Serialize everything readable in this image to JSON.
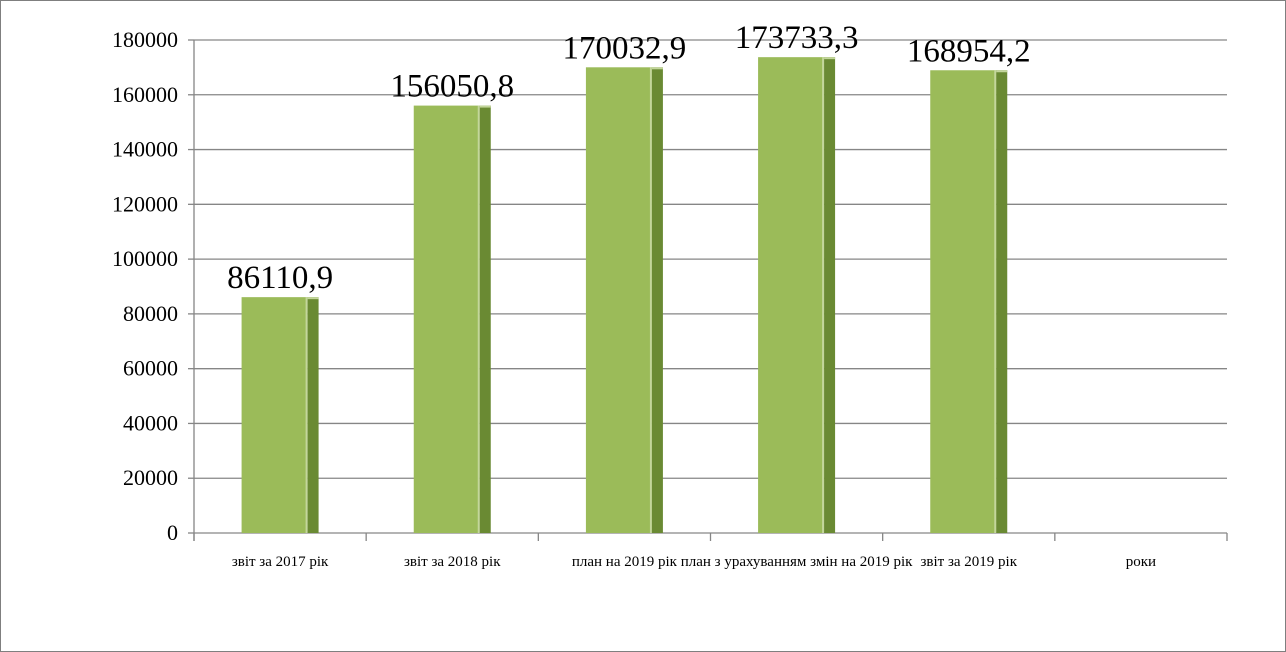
{
  "chart_data": {
    "type": "bar",
    "categories": [
      "звіт за 2017 рік",
      "звіт за 2018 рік",
      "план на 2019 рік",
      "план з урахуванням змін на 2019 рік",
      "звіт за 2019 рік",
      "роки"
    ],
    "values": [
      86110.9,
      156050.8,
      170032.9,
      173733.3,
      168954.2,
      null
    ],
    "data_labels": [
      "86110,9",
      "156050,8",
      "170032,9",
      "173733,3",
      "168954,2",
      ""
    ],
    "y_ticks": [
      "0",
      "20000",
      "40000",
      "60000",
      "80000",
      "100000",
      "120000",
      "140000",
      "160000",
      "180000"
    ],
    "ylim": [
      0,
      180000
    ],
    "y_step": 20000,
    "grid": true,
    "legend": "none",
    "title": "",
    "xlabel": "",
    "ylabel": "",
    "colors": {
      "bar_front": "#9bbb59",
      "bar_side": "#6a8a33",
      "bar_highlight": "#c3d69b",
      "gridline": "#868686",
      "axis": "#868686",
      "frame": "#7f7f7f"
    }
  }
}
